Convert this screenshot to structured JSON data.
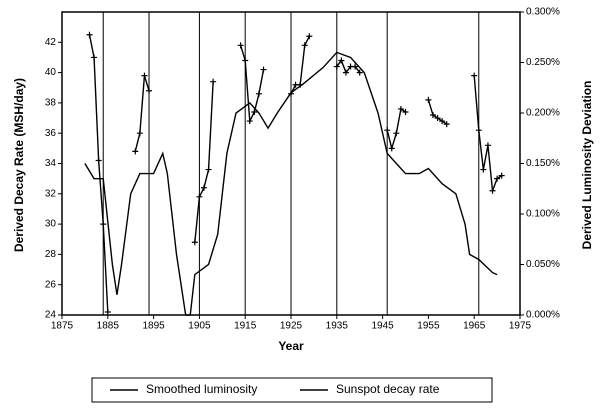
{
  "chart_data": {
    "type": "line",
    "x_label": "Year",
    "y_label": "Derived Decay Rate (MSH/day)",
    "y2_label": "Derived Luminosity Deviation",
    "xlim": [
      1875,
      1975
    ],
    "xticks": [
      1875,
      1885,
      1895,
      1905,
      1915,
      1925,
      1935,
      1945,
      1955,
      1965,
      1975
    ],
    "ylim": [
      24,
      44
    ],
    "yticks": [
      24,
      26,
      28,
      30,
      32,
      34,
      36,
      38,
      40,
      42
    ],
    "y2lim": [
      0,
      0.3
    ],
    "y2ticks": [
      {
        "value": 0,
        "label": "0.000%"
      },
      {
        "value": 0.05,
        "label": "0.050%"
      },
      {
        "value": 0.1,
        "label": "0.100%"
      },
      {
        "value": 0.15,
        "label": "0.150%"
      },
      {
        "value": 0.2,
        "label": "0.200%"
      },
      {
        "value": 0.25,
        "label": "0.250%"
      },
      {
        "value": 0.3,
        "label": "0.300%"
      }
    ],
    "cycle_minima": [
      1884,
      1894,
      1905,
      1915,
      1925,
      1935,
      1946,
      1966,
      1975
    ],
    "series": [
      {
        "name": "Smoothed luminosity",
        "color": "#000000",
        "axis": "y2",
        "x": [
          1880,
          1882,
          1884,
          1886,
          1887,
          1888,
          1890,
          1892,
          1895,
          1897,
          1898,
          1900,
          1902,
          1903,
          1904,
          1907,
          1909,
          1911,
          1913,
          1916,
          1918,
          1920,
          1922,
          1925,
          1928,
          1932,
          1935,
          1938,
          1941,
          1944,
          1946,
          1950,
          1953,
          1955,
          1958,
          1961,
          1963,
          1964,
          1966,
          1969,
          1970
        ],
        "values": [
          0.15,
          0.135,
          0.135,
          0.05,
          0.02,
          0.05,
          0.12,
          0.14,
          0.14,
          0.16,
          0.14,
          0.06,
          0.0,
          0.0,
          0.04,
          0.05,
          0.08,
          0.16,
          0.2,
          0.21,
          0.2,
          0.185,
          0.2,
          0.22,
          0.23,
          0.245,
          0.26,
          0.255,
          0.24,
          0.2,
          0.16,
          0.14,
          0.14,
          0.145,
          0.13,
          0.12,
          0.09,
          0.06,
          0.055,
          0.042,
          0.04
        ]
      },
      {
        "name": "Sunspot decay rate",
        "color": "#000000",
        "axis": "y",
        "markers": true,
        "x": [
          1881,
          1882,
          1883,
          1884,
          1885,
          1888,
          1891,
          1892,
          1893,
          1894,
          1900,
          1904,
          1905,
          1906,
          1907,
          1908,
          1911,
          1914,
          1915,
          1916,
          1917,
          1918,
          1919,
          1922,
          1925,
          1926,
          1927,
          1928,
          1929,
          1932,
          1935,
          1936,
          1937,
          1938,
          1939,
          1940,
          1943,
          1946,
          1947,
          1948,
          1949,
          1950,
          1952,
          1955,
          1956,
          1957,
          1958,
          1959,
          1962,
          1965,
          1966,
          1967,
          1968,
          1969,
          1970,
          1971
        ],
        "values": [
          42.5,
          41,
          34.2,
          30,
          24.2,
          null,
          34.8,
          36,
          39.8,
          38.8,
          null,
          28.8,
          31.8,
          32.4,
          33.6,
          39.4,
          null,
          41.8,
          40.8,
          36.8,
          37.4,
          38.6,
          40.2,
          null,
          38.6,
          39.2,
          39.2,
          41.8,
          42.4,
          null,
          40.4,
          40.8,
          40,
          40.4,
          40.4,
          40,
          null,
          36.2,
          35,
          36,
          37.6,
          37.4,
          null,
          38.2,
          37.2,
          37,
          36.8,
          36.6,
          null,
          39.8,
          36.2,
          33.6,
          35.2,
          32.2,
          33,
          33.2
        ]
      }
    ]
  }
}
